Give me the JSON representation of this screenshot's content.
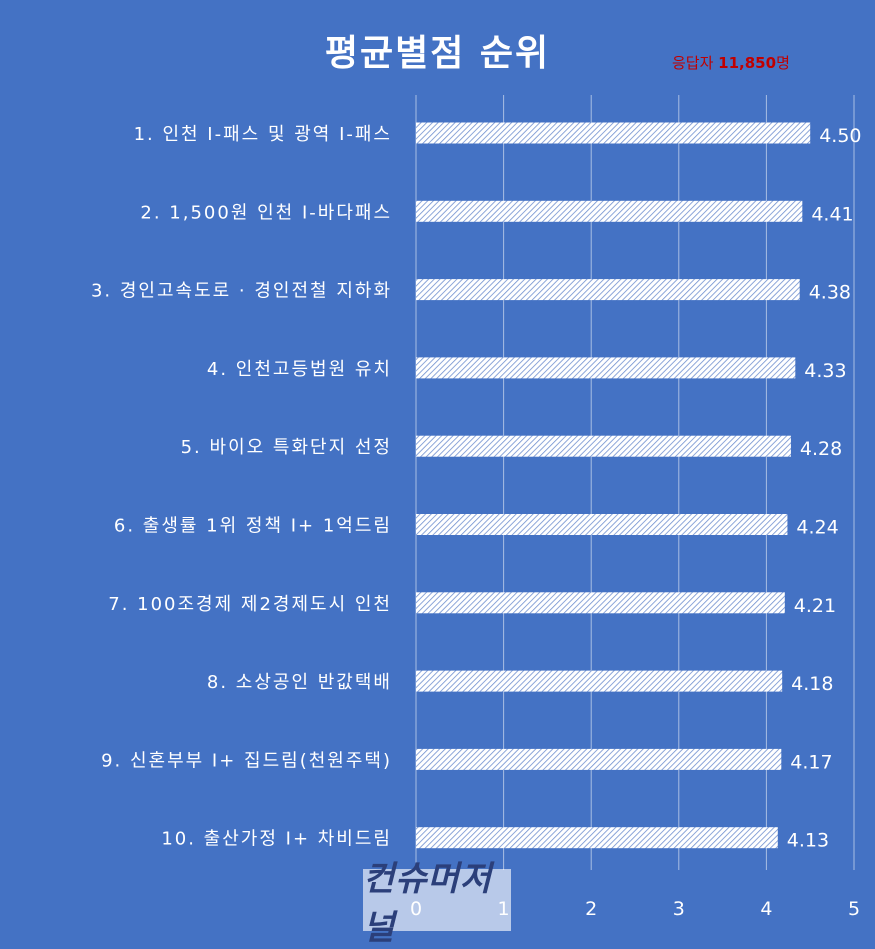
{
  "chart_data": {
    "type": "bar",
    "orientation": "horizontal",
    "title": "평균별점 순위",
    "categories": [
      "1. 인천 I-패스 및 광역 I-패스",
      "2. 1,500원 인천 I-바다패스",
      "3. 경인고속도로 · 경인전철 지하화",
      "4. 인천고등법원 유치",
      "5. 바이오 특화단지 선정",
      "6. 출생률 1위 정책  I+ 1억드림",
      "7. 100조경제 제2경제도시 인천",
      "8. 소상공인 반값택배",
      "9. 신혼부부 I+ 집드림(천원주택)",
      "10. 출산가정 I+ 차비드림"
    ],
    "values": [
      4.5,
      4.41,
      4.38,
      4.33,
      4.28,
      4.24,
      4.21,
      4.18,
      4.17,
      4.13
    ],
    "value_labels": [
      "4.50",
      "4.41",
      "4.38",
      "4.33",
      "4.28",
      "4.24",
      "4.21",
      "4.18",
      "4.17",
      "4.13"
    ],
    "xlim": [
      0,
      5
    ],
    "xticks": [
      "0",
      "1",
      "2",
      "3",
      "4",
      "5"
    ],
    "grid": true,
    "bar_fill": "hatched",
    "colors": {
      "background": "#4472c4",
      "bar": "#ffffff",
      "text": "#ffffff",
      "accent": "#c00000"
    }
  },
  "respondents": {
    "prefix": "응답자 ",
    "count": "11,850",
    "suffix": "명"
  },
  "watermark": "컨슈머저널"
}
